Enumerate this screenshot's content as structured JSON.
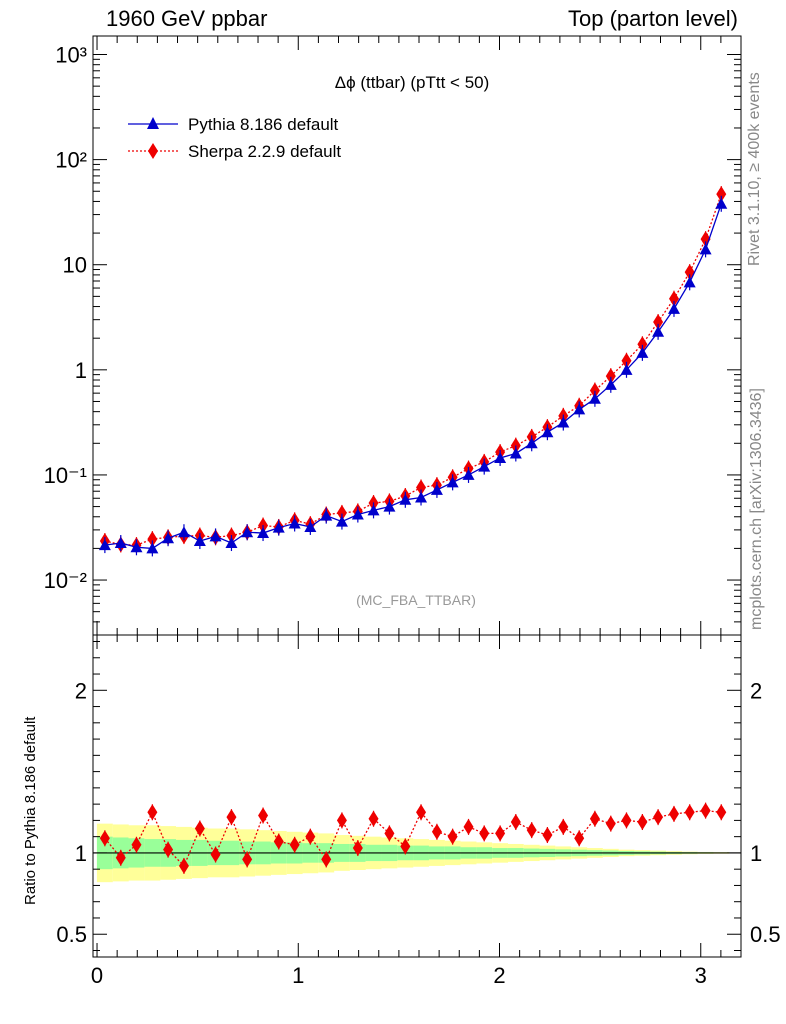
{
  "header": {
    "left": "1960 GeV ppbar",
    "right": "Top (parton level)"
  },
  "side_labels": {
    "rivet": "Rivet 3.1.10, ≥ 400k events",
    "mcplots": "mcplots.cern.ch [arXiv:1306.3436]"
  },
  "colors": {
    "pythia": "#0000cc",
    "sherpa": "#ee0000",
    "band_inner": "#99ff99",
    "band_outer": "#ffff99"
  },
  "chart_data": [
    {
      "type": "line",
      "title": "Δϕ (ttbar) (pTtt < 50)",
      "watermark": "(MC_FBA_TTBAR)",
      "y_scale": "log",
      "xlim": [
        -0.02,
        3.2
      ],
      "ylim": [
        0.003,
        1500
      ],
      "x_ticks": [
        "0",
        "1",
        "2",
        "3"
      ],
      "y_ticks": [
        "10⁻²",
        "10⁻¹",
        "1",
        "10",
        "10²",
        "10³"
      ],
      "legend_position": "top-left",
      "x": [
        0.039,
        0.118,
        0.196,
        0.275,
        0.353,
        0.432,
        0.511,
        0.589,
        0.668,
        0.746,
        0.825,
        0.903,
        0.982,
        1.06,
        1.139,
        1.217,
        1.296,
        1.374,
        1.453,
        1.532,
        1.61,
        1.689,
        1.767,
        1.846,
        1.924,
        2.003,
        2.081,
        2.16,
        2.238,
        2.317,
        2.396,
        2.474,
        2.553,
        2.631,
        2.71,
        2.788,
        2.867,
        2.945,
        3.024,
        3.102
      ],
      "series": [
        {
          "name": "Pythia 8.186 default",
          "values": [
            0.0215,
            0.0225,
            0.0205,
            0.02,
            0.025,
            0.0285,
            0.0235,
            0.026,
            0.0225,
            0.0285,
            0.028,
            0.0315,
            0.0345,
            0.032,
            0.041,
            0.036,
            0.042,
            0.046,
            0.05,
            0.058,
            0.061,
            0.072,
            0.085,
            0.1,
            0.12,
            0.145,
            0.16,
            0.2,
            0.255,
            0.315,
            0.42,
            0.53,
            0.72,
            1.0,
            1.45,
            2.3,
            3.8,
            6.8,
            14.0,
            38.0
          ]
        },
        {
          "name": "Sherpa 2.2.9 default",
          "values": [
            0.0235,
            0.0218,
            0.0215,
            0.0245,
            0.0255,
            0.0262,
            0.0265,
            0.0255,
            0.0265,
            0.0285,
            0.033,
            0.032,
            0.037,
            0.034,
            0.042,
            0.0435,
            0.045,
            0.054,
            0.056,
            0.063,
            0.076,
            0.08,
            0.095,
            0.115,
            0.133,
            0.165,
            0.19,
            0.23,
            0.285,
            0.365,
            0.455,
            0.635,
            0.87,
            1.22,
            1.75,
            2.85,
            4.75,
            8.5,
            17.5,
            47.0
          ]
        }
      ]
    },
    {
      "type": "line",
      "ylabel": "Ratio to Pythia 8.186 default",
      "xlim": [
        -0.02,
        3.2
      ],
      "ylim": [
        0.36,
        2.34
      ],
      "x_ticks": [
        "0",
        "1",
        "2",
        "3"
      ],
      "y_ticks": [
        "0.5",
        "1",
        "2"
      ],
      "reference": 1.0,
      "x": [
        0.039,
        0.118,
        0.196,
        0.275,
        0.353,
        0.432,
        0.511,
        0.589,
        0.668,
        0.746,
        0.825,
        0.903,
        0.982,
        1.06,
        1.139,
        1.217,
        1.296,
        1.374,
        1.453,
        1.532,
        1.61,
        1.689,
        1.767,
        1.846,
        1.924,
        2.003,
        2.081,
        2.16,
        2.238,
        2.317,
        2.396,
        2.474,
        2.553,
        2.631,
        2.71,
        2.788,
        2.867,
        2.945,
        3.024,
        3.102
      ],
      "series": [
        {
          "name": "Sherpa 2.2.9 default",
          "values": [
            1.09,
            0.97,
            1.05,
            1.25,
            1.02,
            0.92,
            1.15,
            0.99,
            1.22,
            0.96,
            1.23,
            1.07,
            1.05,
            1.1,
            0.96,
            1.2,
            1.03,
            1.21,
            1.12,
            1.04,
            1.25,
            1.13,
            1.1,
            1.16,
            1.12,
            1.12,
            1.19,
            1.14,
            1.11,
            1.16,
            1.09,
            1.21,
            1.18,
            1.2,
            1.19,
            1.22,
            1.24,
            1.25,
            1.26,
            1.25
          ]
        }
      ],
      "band_inner": [
        0.1,
        0.095,
        0.09,
        0.085,
        0.085,
        0.08,
        0.08,
        0.075,
        0.075,
        0.07,
        0.07,
        0.065,
        0.065,
        0.06,
        0.06,
        0.055,
        0.055,
        0.05,
        0.05,
        0.045,
        0.045,
        0.04,
        0.04,
        0.035,
        0.035,
        0.03,
        0.03,
        0.027,
        0.025,
        0.022,
        0.02,
        0.017,
        0.015,
        0.012,
        0.01,
        0.008,
        0.006,
        0.005,
        0.004,
        0.003
      ],
      "band_outer": [
        0.18,
        0.175,
        0.17,
        0.17,
        0.165,
        0.16,
        0.155,
        0.15,
        0.15,
        0.145,
        0.14,
        0.135,
        0.13,
        0.125,
        0.12,
        0.11,
        0.105,
        0.1,
        0.095,
        0.09,
        0.085,
        0.08,
        0.075,
        0.07,
        0.065,
        0.06,
        0.055,
        0.05,
        0.045,
        0.04,
        0.035,
        0.03,
        0.025,
        0.02,
        0.017,
        0.014,
        0.011,
        0.008,
        0.006,
        0.005
      ]
    }
  ]
}
